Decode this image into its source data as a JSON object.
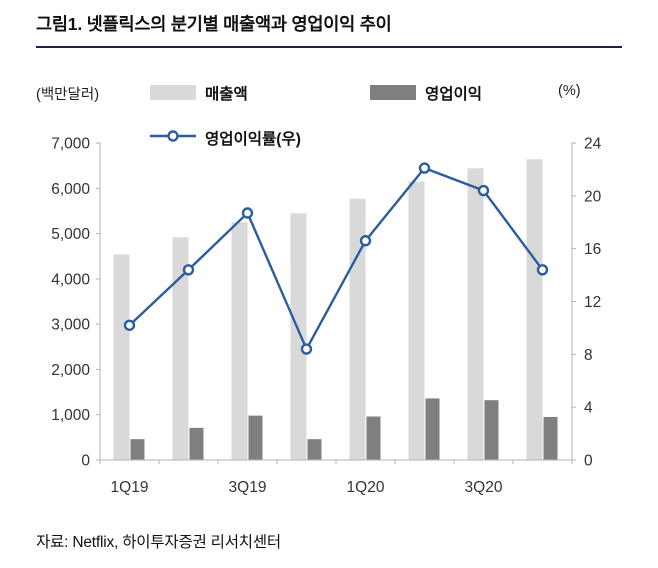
{
  "title": "그림1. 넷플릭스의 분기별 매출액과 영업이익 추이",
  "source": "자료: Netflix, 하이투자증권 리서치센터",
  "legend": {
    "left_axis_unit": "(백만달러)",
    "right_axis_unit": "(%)",
    "revenue_label": "매출액",
    "op_label": "영업이익",
    "margin_label": "영업이익률(우)"
  },
  "colors": {
    "revenue_bar": "#d9d9d9",
    "op_bar": "#7f7f7f",
    "margin_line": "#2b5d9e",
    "axis": "#b3b3b3",
    "tick_text": "#333333"
  },
  "chart_data": {
    "type": "bar+line",
    "categories": [
      "1Q19",
      "2Q19",
      "3Q19",
      "4Q19",
      "1Q20",
      "2Q20",
      "3Q20",
      "4Q20"
    ],
    "x_tick_labels": [
      "1Q19",
      "3Q19",
      "1Q20",
      "3Q20"
    ],
    "x_tick_indices": [
      0,
      2,
      4,
      6
    ],
    "series": [
      {
        "name": "매출액",
        "type": "bar",
        "axis": "left",
        "values": [
          4540,
          4920,
          5250,
          5450,
          5770,
          6150,
          6440,
          6640
        ]
      },
      {
        "name": "영업이익",
        "type": "bar",
        "axis": "left",
        "values": [
          460,
          710,
          980,
          460,
          960,
          1360,
          1320,
          950
        ]
      },
      {
        "name": "영업이익률(우)",
        "type": "line",
        "axis": "right",
        "values": [
          10.2,
          14.4,
          18.7,
          8.4,
          16.6,
          22.1,
          20.4,
          14.4
        ]
      }
    ],
    "left_axis": {
      "min": 0,
      "max": 7000,
      "step": 1000
    },
    "right_axis": {
      "min": 0,
      "max": 24,
      "step": 4
    },
    "grid": false,
    "legend_position": "top"
  }
}
